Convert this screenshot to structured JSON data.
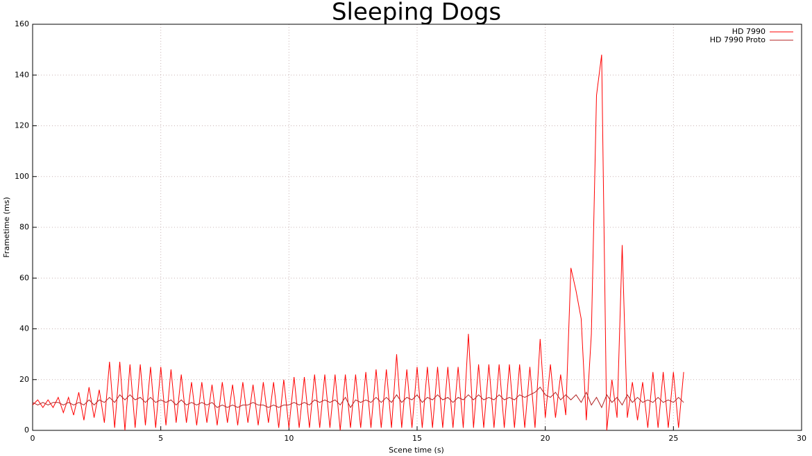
{
  "chart_data": {
    "type": "line",
    "title": "Sleeping Dogs",
    "x_label": "Scene time (s)",
    "y_label": "Frametime (ms)",
    "x": [
      0,
      0.2,
      0.4,
      0.6,
      0.8,
      1.0,
      1.2,
      1.4,
      1.6,
      1.8,
      2.0,
      2.2,
      2.4,
      2.6,
      2.8,
      3.0,
      3.2,
      3.4,
      3.6,
      3.8,
      4.0,
      4.2,
      4.4,
      4.6,
      4.8,
      5.0,
      5.2,
      5.4,
      5.6,
      5.8,
      6.0,
      6.2,
      6.4,
      6.6,
      6.8,
      7.0,
      7.2,
      7.4,
      7.6,
      7.8,
      8.0,
      8.2,
      8.4,
      8.6,
      8.8,
      9.0,
      9.2,
      9.4,
      9.6,
      9.8,
      10.0,
      10.2,
      10.4,
      10.6,
      10.8,
      11.0,
      11.2,
      11.4,
      11.6,
      11.8,
      12.0,
      12.2,
      12.4,
      12.6,
      12.8,
      13.0,
      13.2,
      13.4,
      13.6,
      13.8,
      14.0,
      14.2,
      14.4,
      14.6,
      14.8,
      15.0,
      15.2,
      15.4,
      15.6,
      15.8,
      16.0,
      16.2,
      16.4,
      16.6,
      16.8,
      17.0,
      17.2,
      17.4,
      17.6,
      17.8,
      18.0,
      18.2,
      18.4,
      18.6,
      18.8,
      19.0,
      19.2,
      19.4,
      19.6,
      19.8,
      20.0,
      20.2,
      20.4,
      20.6,
      20.8,
      21.0,
      21.2,
      21.4,
      21.6,
      21.8,
      22.0,
      22.2,
      22.4,
      22.6,
      22.8,
      23.0,
      23.2,
      23.4,
      23.6,
      23.8,
      24.0,
      24.2,
      24.4,
      24.6,
      24.8,
      25.0,
      25.2,
      25.4
    ],
    "series": [
      {
        "name": "HD 7990",
        "color": "#ff0000",
        "values": [
          10,
          12,
          9,
          12,
          9,
          13,
          7,
          13,
          6,
          15,
          4,
          17,
          5,
          16,
          3,
          27,
          1,
          27,
          0,
          26,
          1,
          26,
          2,
          25,
          1,
          25,
          2,
          24,
          3,
          22,
          3,
          19,
          2,
          19,
          3,
          18,
          2,
          19,
          3,
          18,
          2,
          19,
          3,
          18,
          2,
          19,
          3,
          19,
          1,
          20,
          1,
          21,
          1,
          21,
          1,
          22,
          1,
          22,
          1,
          22,
          0,
          22,
          1,
          22,
          1,
          23,
          1,
          24,
          1,
          24,
          1,
          30,
          1,
          24,
          1,
          25,
          1,
          25,
          1,
          25,
          1,
          25,
          1,
          25,
          1,
          38,
          1,
          26,
          1,
          26,
          1,
          26,
          1,
          26,
          1,
          26,
          1,
          25,
          1,
          36,
          5,
          26,
          5,
          22,
          6,
          64,
          55,
          44,
          4,
          38,
          132,
          148,
          0,
          20,
          5,
          73,
          5,
          19,
          4,
          19,
          1,
          23,
          1,
          23,
          1,
          23,
          1,
          23
        ]
      },
      {
        "name": "HD 7990 Proto",
        "color": "#b22222",
        "values": [
          11,
          10,
          11,
          10,
          11,
          11,
          10,
          11,
          10,
          11,
          10,
          12,
          10,
          12,
          11,
          13,
          11,
          14,
          12,
          14,
          12,
          13,
          11,
          13,
          11,
          12,
          11,
          12,
          10,
          12,
          10,
          11,
          10,
          11,
          10,
          11,
          9,
          10,
          9,
          10,
          9,
          10,
          10,
          11,
          10,
          10,
          9,
          10,
          9,
          10,
          10,
          11,
          10,
          11,
          10,
          12,
          11,
          12,
          11,
          12,
          10,
          13,
          9,
          12,
          11,
          12,
          11,
          13,
          11,
          13,
          11,
          14,
          11,
          13,
          12,
          14,
          11,
          13,
          12,
          14,
          12,
          13,
          11,
          13,
          12,
          14,
          12,
          14,
          12,
          13,
          12,
          14,
          12,
          13,
          12,
          14,
          13,
          14,
          15,
          17,
          14,
          13,
          15,
          12,
          14,
          12,
          14,
          11,
          15,
          10,
          13,
          9,
          14,
          11,
          13,
          10,
          14,
          11,
          13,
          11,
          12,
          11,
          13,
          11,
          12,
          11,
          13,
          11
        ]
      }
    ],
    "xlim": [
      0,
      30
    ],
    "xticks": [
      0,
      5,
      10,
      15,
      20,
      25,
      30
    ],
    "ylim": [
      0,
      160
    ],
    "yticks": [
      0,
      20,
      40,
      60,
      80,
      100,
      120,
      140,
      160
    ],
    "grid": true,
    "legend": "top-right"
  }
}
